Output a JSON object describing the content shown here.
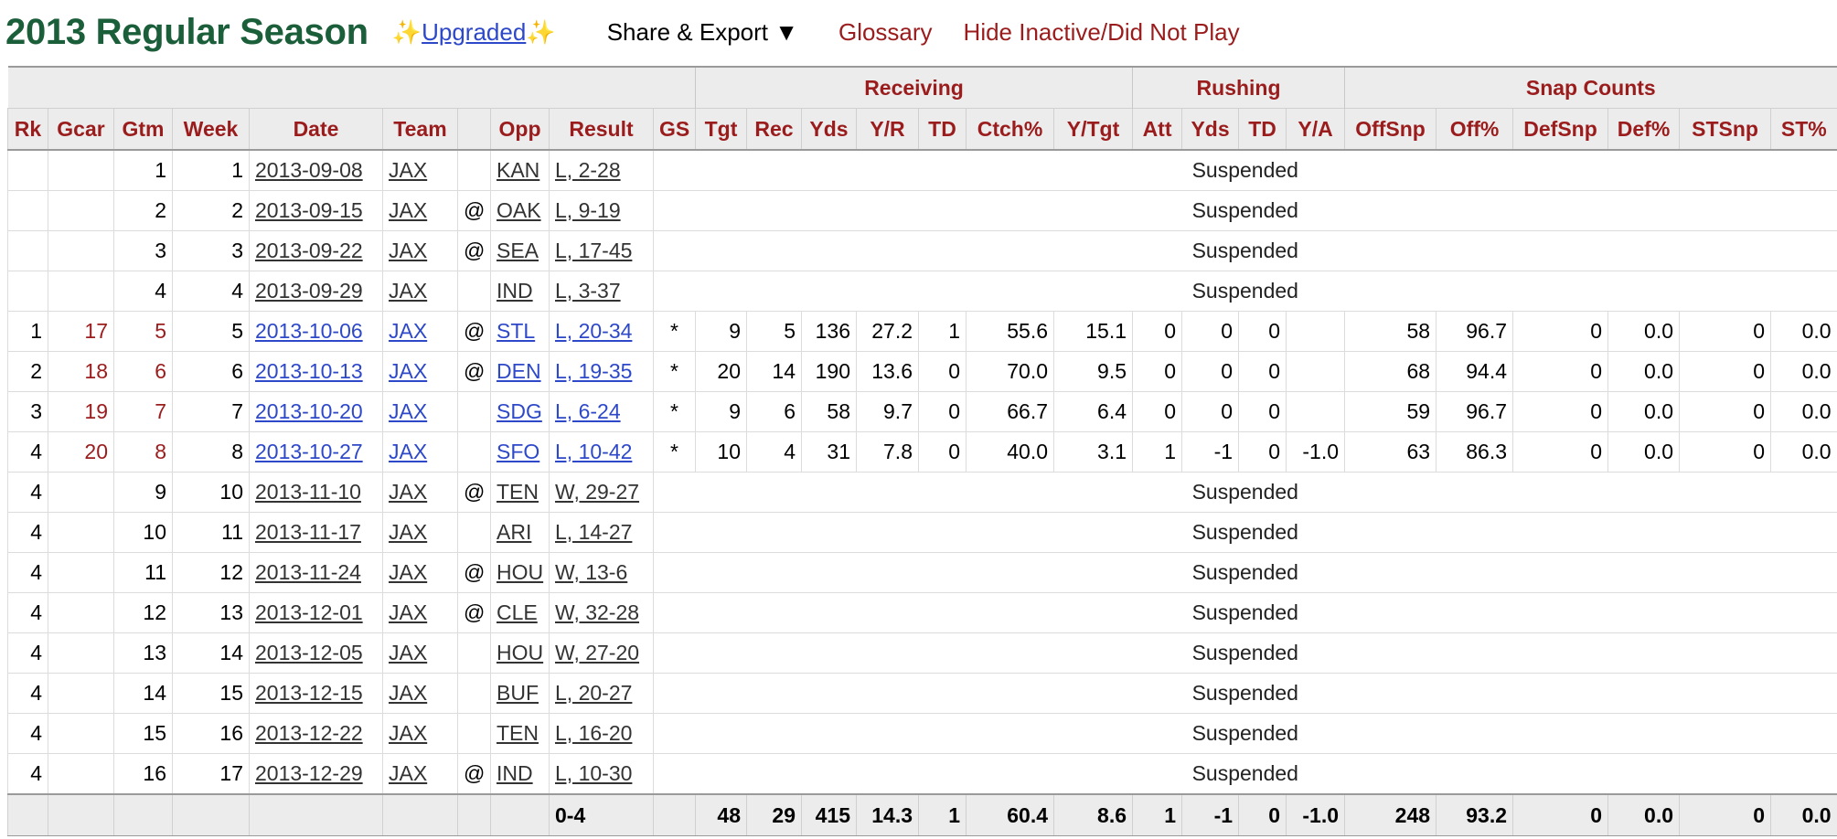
{
  "header": {
    "title": "2013 Regular Season",
    "sparkle": "✨",
    "upgraded": "Upgraded",
    "share_export": "Share & Export ▼",
    "glossary": "Glossary",
    "hide_inactive": "Hide Inactive/Did Not Play"
  },
  "groups": {
    "receiving": "Receiving",
    "rushing": "Rushing",
    "snap": "Snap Counts"
  },
  "columns": [
    "Rk",
    "Gcar",
    "Gtm",
    "Week",
    "Date",
    "Team",
    "",
    "Opp",
    "Result",
    "GS",
    "Tgt",
    "Rec",
    "Yds",
    "Y/R",
    "TD",
    "Ctch%",
    "Y/Tgt",
    "Att",
    "Yds",
    "TD",
    "Y/A",
    "OffSnp",
    "Off%",
    "DefSnp",
    "Def%",
    "STSnp",
    "ST%"
  ],
  "rows": [
    {
      "type": "suspended",
      "rk": "",
      "gcar": "",
      "gtm": "1",
      "week": "1",
      "date": "2013-09-08",
      "team": "JAX",
      "at": "",
      "opp": "KAN",
      "result": "L, 2-28",
      "note": "Suspended"
    },
    {
      "type": "suspended",
      "rk": "",
      "gcar": "",
      "gtm": "2",
      "week": "2",
      "date": "2013-09-15",
      "team": "JAX",
      "at": "@",
      "opp": "OAK",
      "result": "L, 9-19",
      "note": "Suspended"
    },
    {
      "type": "suspended",
      "rk": "",
      "gcar": "",
      "gtm": "3",
      "week": "3",
      "date": "2013-09-22",
      "team": "JAX",
      "at": "@",
      "opp": "SEA",
      "result": "L, 17-45",
      "note": "Suspended"
    },
    {
      "type": "suspended",
      "rk": "",
      "gcar": "",
      "gtm": "4",
      "week": "4",
      "date": "2013-09-29",
      "team": "JAX",
      "at": "",
      "opp": "IND",
      "result": "L, 3-37",
      "note": "Suspended"
    },
    {
      "type": "played",
      "rk": "1",
      "gcar": "17",
      "gtm": "5",
      "week": "5",
      "date": "2013-10-06",
      "team": "JAX",
      "at": "@",
      "opp": "STL",
      "result": "L, 20-34",
      "gs": "*",
      "tgt": "9",
      "rec": "5",
      "ryds": "136",
      "yr": "27.2",
      "rtd": "1",
      "ctch": "55.6",
      "ytgt": "15.1",
      "att": "0",
      "uyds": "0",
      "utd": "0",
      "ya": "",
      "offsnp": "58",
      "offp": "96.7",
      "defsnp": "0",
      "defp": "0.0",
      "stsnp": "0",
      "stp": "0.0"
    },
    {
      "type": "played",
      "rk": "2",
      "gcar": "18",
      "gtm": "6",
      "week": "6",
      "date": "2013-10-13",
      "team": "JAX",
      "at": "@",
      "opp": "DEN",
      "result": "L, 19-35",
      "gs": "*",
      "tgt": "20",
      "rec": "14",
      "ryds": "190",
      "yr": "13.6",
      "rtd": "0",
      "ctch": "70.0",
      "ytgt": "9.5",
      "att": "0",
      "uyds": "0",
      "utd": "0",
      "ya": "",
      "offsnp": "68",
      "offp": "94.4",
      "defsnp": "0",
      "defp": "0.0",
      "stsnp": "0",
      "stp": "0.0"
    },
    {
      "type": "played",
      "rk": "3",
      "gcar": "19",
      "gtm": "7",
      "week": "7",
      "date": "2013-10-20",
      "team": "JAX",
      "at": "",
      "opp": "SDG",
      "result": "L, 6-24",
      "gs": "*",
      "tgt": "9",
      "rec": "6",
      "ryds": "58",
      "yr": "9.7",
      "rtd": "0",
      "ctch": "66.7",
      "ytgt": "6.4",
      "att": "0",
      "uyds": "0",
      "utd": "0",
      "ya": "",
      "offsnp": "59",
      "offp": "96.7",
      "defsnp": "0",
      "defp": "0.0",
      "stsnp": "0",
      "stp": "0.0"
    },
    {
      "type": "played",
      "rk": "4",
      "gcar": "20",
      "gtm": "8",
      "week": "8",
      "date": "2013-10-27",
      "team": "JAX",
      "at": "",
      "opp": "SFO",
      "result": "L, 10-42",
      "gs": "*",
      "tgt": "10",
      "rec": "4",
      "ryds": "31",
      "yr": "7.8",
      "rtd": "0",
      "ctch": "40.0",
      "ytgt": "3.1",
      "att": "1",
      "uyds": "-1",
      "utd": "0",
      "ya": "-1.0",
      "offsnp": "63",
      "offp": "86.3",
      "defsnp": "0",
      "defp": "0.0",
      "stsnp": "0",
      "stp": "0.0"
    },
    {
      "type": "suspended",
      "rk": "4",
      "gcar": "",
      "gtm": "9",
      "week": "10",
      "date": "2013-11-10",
      "team": "JAX",
      "at": "@",
      "opp": "TEN",
      "result": "W, 29-27",
      "note": "Suspended"
    },
    {
      "type": "suspended",
      "rk": "4",
      "gcar": "",
      "gtm": "10",
      "week": "11",
      "date": "2013-11-17",
      "team": "JAX",
      "at": "",
      "opp": "ARI",
      "result": "L, 14-27",
      "note": "Suspended"
    },
    {
      "type": "suspended",
      "rk": "4",
      "gcar": "",
      "gtm": "11",
      "week": "12",
      "date": "2013-11-24",
      "team": "JAX",
      "at": "@",
      "opp": "HOU",
      "result": "W, 13-6",
      "note": "Suspended"
    },
    {
      "type": "suspended",
      "rk": "4",
      "gcar": "",
      "gtm": "12",
      "week": "13",
      "date": "2013-12-01",
      "team": "JAX",
      "at": "@",
      "opp": "CLE",
      "result": "W, 32-28",
      "note": "Suspended"
    },
    {
      "type": "suspended",
      "rk": "4",
      "gcar": "",
      "gtm": "13",
      "week": "14",
      "date": "2013-12-05",
      "team": "JAX",
      "at": "",
      "opp": "HOU",
      "result": "W, 27-20",
      "note": "Suspended"
    },
    {
      "type": "suspended",
      "rk": "4",
      "gcar": "",
      "gtm": "14",
      "week": "15",
      "date": "2013-12-15",
      "team": "JAX",
      "at": "",
      "opp": "BUF",
      "result": "L, 20-27",
      "note": "Suspended"
    },
    {
      "type": "suspended",
      "rk": "4",
      "gcar": "",
      "gtm": "15",
      "week": "16",
      "date": "2013-12-22",
      "team": "JAX",
      "at": "",
      "opp": "TEN",
      "result": "L, 16-20",
      "note": "Suspended"
    },
    {
      "type": "suspended",
      "rk": "4",
      "gcar": "",
      "gtm": "16",
      "week": "17",
      "date": "2013-12-29",
      "team": "JAX",
      "at": "@",
      "opp": "IND",
      "result": "L, 10-30",
      "note": "Suspended"
    }
  ],
  "totals": {
    "result": "0-4",
    "tgt": "48",
    "rec": "29",
    "ryds": "415",
    "yr": "14.3",
    "rtd": "1",
    "ctch": "60.4",
    "ytgt": "8.6",
    "att": "1",
    "uyds": "-1",
    "utd": "0",
    "ya": "-1.0",
    "offsnp": "248",
    "offp": "93.2",
    "defsnp": "0",
    "defp": "0.0",
    "stsnp": "0",
    "stp": "0.0"
  }
}
